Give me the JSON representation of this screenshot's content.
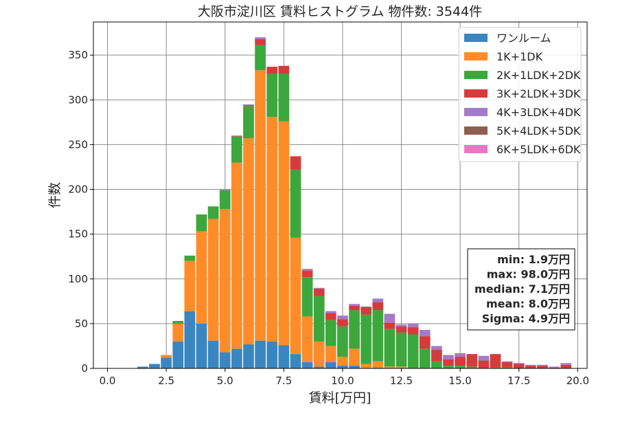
{
  "chart_data": {
    "type": "bar",
    "stacked": true,
    "title": "大阪市淀川区 賃料ヒストグラム 物件数: 3544件",
    "xlabel": "賃料[万円]",
    "ylabel": "件数",
    "xlim": [
      -0.6,
      20.4
    ],
    "ylim": [
      0,
      387
    ],
    "xticks": [
      0,
      2.5,
      5,
      7.5,
      10,
      12.5,
      15,
      17.5,
      20
    ],
    "xtick_labels": [
      "0.0",
      "2.5",
      "5.0",
      "7.5",
      "10.0",
      "12.5",
      "15.0",
      "17.5",
      "20.0"
    ],
    "yticks": [
      0,
      50,
      100,
      150,
      200,
      250,
      300,
      350
    ],
    "ytick_labels": [
      "0",
      "50",
      "100",
      "150",
      "200",
      "250",
      "300",
      "350"
    ],
    "grid": true,
    "legend_position": "top-right",
    "bin_width": 0.5,
    "x": [
      1.5,
      2.0,
      2.5,
      3.0,
      3.5,
      4.0,
      4.5,
      5.0,
      5.5,
      6.0,
      6.5,
      7.0,
      7.5,
      8.0,
      8.5,
      9.0,
      9.5,
      10.0,
      10.5,
      11.0,
      11.5,
      12.0,
      12.5,
      13.0,
      13.5,
      14.0,
      14.5,
      15.0,
      15.5,
      16.0,
      16.5,
      17.0,
      17.5,
      18.0,
      18.5,
      19.0,
      19.5
    ],
    "series": [
      {
        "name": "ワンルーム",
        "color": "#3a86c0",
        "values": [
          2,
          5,
          12,
          30,
          64,
          50,
          31,
          18,
          22,
          27,
          31,
          30,
          26,
          16,
          7,
          2,
          7,
          3,
          3,
          0,
          1,
          0,
          0,
          0,
          0,
          0,
          0,
          0,
          0,
          0,
          0,
          0,
          0,
          0,
          0,
          0,
          0
        ]
      },
      {
        "name": "1K+1DK",
        "color": "#ff8c28",
        "values": [
          0,
          0,
          3,
          20,
          56,
          103,
          136,
          160,
          208,
          230,
          302,
          251,
          250,
          130,
          51,
          28,
          18,
          10,
          19,
          5,
          7,
          2,
          2,
          0,
          0,
          0,
          0,
          0,
          0,
          0,
          0,
          0,
          0,
          0,
          0,
          0,
          0
        ]
      },
      {
        "name": "2K+1LDK+2DK",
        "color": "#3ca73c",
        "values": [
          0,
          0,
          0,
          3,
          6,
          19,
          14,
          21,
          29,
          36,
          28,
          48,
          53,
          76,
          44,
          51,
          29,
          34,
          43,
          55,
          57,
          42,
          38,
          38,
          22,
          8,
          3,
          3,
          2,
          0,
          1,
          1,
          0,
          0,
          0,
          0,
          0
        ]
      },
      {
        "name": "3K+2LDK+3DK",
        "color": "#d63b3b",
        "values": [
          0,
          0,
          0,
          0,
          0,
          0,
          0,
          0,
          0,
          1,
          7,
          8,
          9,
          15,
          7,
          8,
          8,
          8,
          5,
          8,
          9,
          7,
          7,
          8,
          14,
          13,
          7,
          10,
          14,
          9,
          15,
          6,
          5,
          3,
          3,
          1,
          4
        ]
      },
      {
        "name": "4K+3LDK+4DK",
        "color": "#a47bc8",
        "values": [
          0,
          0,
          0,
          0,
          0,
          0,
          0,
          1,
          0,
          1,
          2,
          0,
          0,
          0,
          1,
          1,
          2,
          4,
          2,
          0,
          4,
          10,
          2,
          4,
          7,
          4,
          5,
          4,
          0,
          5,
          0,
          1,
          1,
          1,
          1,
          1,
          2
        ]
      },
      {
        "name": "5K+4LDK+5DK",
        "color": "#8f5e52",
        "values": [
          0,
          0,
          0,
          0,
          0,
          0,
          0,
          0,
          1,
          0,
          0,
          0,
          0,
          0,
          1,
          0,
          0,
          0,
          0,
          1,
          0,
          0,
          0,
          0,
          0,
          0,
          0,
          0,
          0,
          0,
          0,
          0,
          0,
          0,
          0,
          0,
          0
        ]
      },
      {
        "name": "6K+5LDK+6DK",
        "color": "#e57ac4",
        "values": [
          0,
          0,
          0,
          0,
          0,
          0,
          0,
          0,
          0,
          0,
          0,
          0,
          0,
          0,
          0,
          0,
          0,
          0,
          0,
          0,
          0,
          0,
          0,
          0,
          0,
          0,
          0,
          0,
          0,
          0,
          0,
          0,
          0,
          0,
          0,
          0,
          0
        ]
      }
    ],
    "stats_lines": [
      "min: 1.9万円",
      "max: 98.0万円",
      "median: 7.1万円",
      "mean: 8.0万円",
      "Sigma: 4.9万円"
    ]
  }
}
